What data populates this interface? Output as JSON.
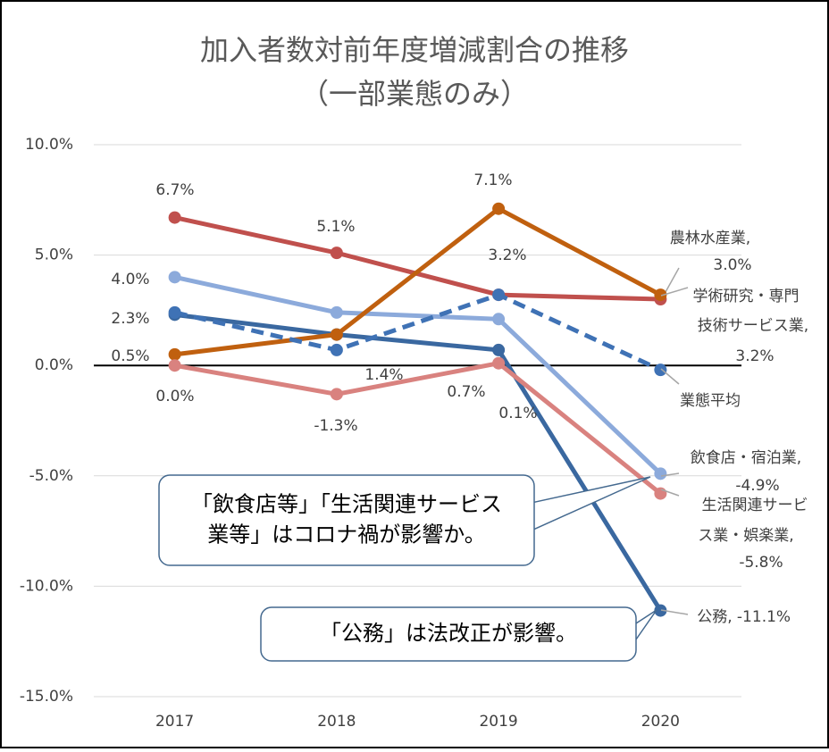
{
  "chart_data": {
    "type": "line",
    "title": [
      "加入者数対前年度増減割合の推移",
      "（一部業態のみ）"
    ],
    "categories": [
      "2017",
      "2018",
      "2019",
      "2020"
    ],
    "ylim": [
      -15,
      10
    ],
    "yticks": [
      {
        "value": 10,
        "label": "10.0%"
      },
      {
        "value": 5,
        "label": "5.0%"
      },
      {
        "value": 0,
        "label": "0.0%"
      },
      {
        "value": -5,
        "label": "-5.0%"
      },
      {
        "value": -10,
        "label": "-10.0%"
      },
      {
        "value": -15,
        "label": "-15.0%"
      }
    ],
    "grid": true,
    "series": [
      {
        "name": [
          "農林水産業,"
        ],
        "color": "#c0504d",
        "values": [
          6.7,
          5.1,
          3.2,
          3.0
        ],
        "value_labels": [
          "6.7%",
          "5.1%",
          null,
          "3.0%"
        ]
      },
      {
        "name": [
          "飲食店・宿泊業,"
        ],
        "color": "#8caadb",
        "values": [
          4.0,
          2.4,
          2.1,
          -4.9
        ],
        "value_labels": [
          "4.0%",
          null,
          null,
          "-4.9%"
        ]
      },
      {
        "name": [
          "公務,"
        ],
        "color": "#3a68a0",
        "values": [
          2.3,
          1.4,
          0.7,
          -11.1
        ],
        "value_labels": [
          "2.3%",
          null,
          "0.7%",
          "-11.1%"
        ]
      },
      {
        "name": [
          "学術研究・専門",
          "技術サービス業,"
        ],
        "color": "#c0600f",
        "values": [
          0.5,
          1.4,
          7.1,
          3.2
        ],
        "value_labels": [
          "0.5%",
          "1.4%",
          "7.1%",
          "3.2%"
        ]
      },
      {
        "name": [
          "業態平均"
        ],
        "color": "#3f72b5",
        "dashed": true,
        "values": [
          2.4,
          0.7,
          3.2,
          -0.2
        ],
        "value_labels": [
          null,
          null,
          "3.2%",
          null
        ]
      },
      {
        "name": [
          "生活関連サービ",
          "ス業・娯楽業,"
        ],
        "color": "#d9827f",
        "values": [
          0.0,
          -1.3,
          0.1,
          -5.8
        ],
        "value_labels": [
          "0.0%",
          "-1.3%",
          "0.1%",
          "-5.8%"
        ]
      }
    ],
    "annotations": [
      [
        "「飲食店等」「生活関連サービス",
        "業等」はコロナ禍が影響か。"
      ],
      [
        "「公務」は法改正が影響。"
      ]
    ]
  }
}
